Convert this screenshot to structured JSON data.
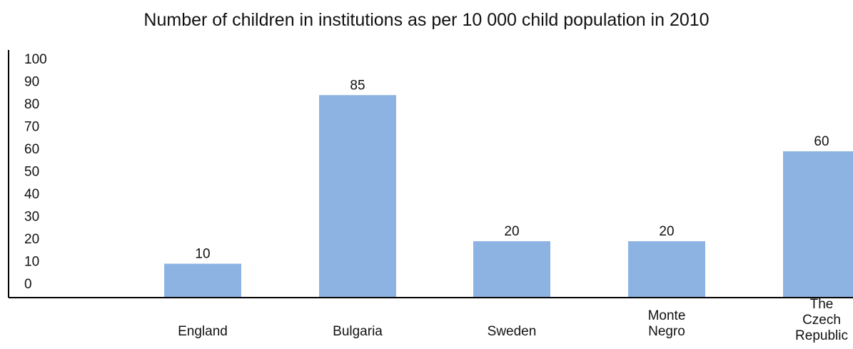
{
  "chart_data": {
    "type": "bar",
    "title": "Number of children in institutions as per 10 000 child population in 2010",
    "xlabel": "",
    "ylabel": "",
    "categories": [
      "England",
      "Bulgaria",
      "Sweden",
      "Monte Negro",
      "The Czech Republic"
    ],
    "category_lines": [
      [
        "England"
      ],
      [
        "Bulgaria"
      ],
      [
        "Sweden"
      ],
      [
        "Monte",
        "Negro"
      ],
      [
        "The",
        "Czech",
        "Republic"
      ]
    ],
    "values": [
      10,
      85,
      20,
      20,
      60
    ],
    "value_labels": [
      "10",
      "85",
      "20",
      "20",
      "60"
    ],
    "yticks": [
      0,
      10,
      20,
      30,
      40,
      50,
      60,
      70,
      80,
      90,
      100
    ],
    "ylim": [
      0,
      100
    ],
    "grid": false,
    "legend": "none",
    "colors": {
      "bar": "#8db3e2",
      "axis": "#000000",
      "text": "#111111"
    }
  }
}
